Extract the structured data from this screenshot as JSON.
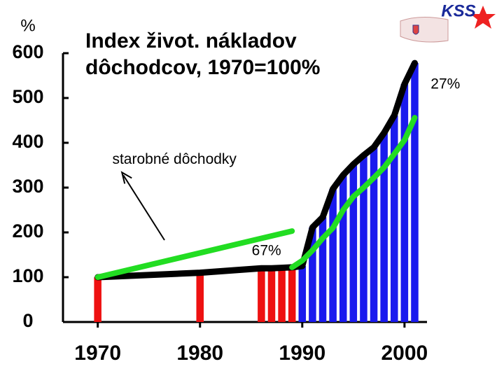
{
  "chart_data": {
    "type": "bar",
    "title": [
      "Index život. nákladov",
      "dôchodcov, 1970=100%"
    ],
    "y_unit": "%",
    "logo": "KSS",
    "x": [
      1970,
      1980,
      1986,
      1987,
      1988,
      1989,
      1990,
      1991,
      1992,
      1993,
      1994,
      1995,
      1996,
      1997,
      1998,
      1999,
      2000,
      2001
    ],
    "values": [
      100,
      110,
      120,
      120,
      121,
      122,
      125,
      211,
      234,
      297,
      328,
      352,
      372,
      390,
      422,
      461,
      531,
      578
    ],
    "bar_colors": [
      "#ee1111",
      "#ee1111",
      "#ee1111",
      "#ee1111",
      "#ee1111",
      "#ee1111",
      "#1a1aee",
      "#1a1aee",
      "#1a1aee",
      "#1a1aee",
      "#1a1aee",
      "#1a1aee",
      "#1a1aee",
      "#1a1aee",
      "#1a1aee",
      "#1a1aee",
      "#1a1aee",
      "#1a1aee"
    ],
    "line_color": "#000000",
    "series": [
      {
        "color": "#22dd22",
        "x": [
          1970,
          1989
        ],
        "values": [
          100,
          203
        ]
      },
      {
        "color": "#22dd22",
        "x": [
          1989,
          1990,
          1991,
          1992,
          1993,
          1994,
          1995,
          1996,
          1997,
          1998,
          1999,
          2000,
          2001
        ],
        "values": [
          122,
          137,
          160,
          187,
          210,
          250,
          280,
          300,
          322,
          345,
          375,
          406,
          456
        ]
      }
    ],
    "annotations": [
      {
        "text": "starobné dôchodky",
        "x": 1977.5,
        "y": 362
      },
      {
        "text": "67%",
        "x": 1986.5,
        "y": 158
      },
      {
        "text": "27%",
        "x": 2004,
        "y": 530
      }
    ],
    "xlim": [
      1966.6,
      2002.2
    ],
    "xticks": [
      1970,
      1980,
      1990,
      2000
    ],
    "ylim": [
      0,
      600
    ],
    "yticks": [
      0,
      100,
      200,
      300,
      400,
      500,
      600
    ]
  }
}
